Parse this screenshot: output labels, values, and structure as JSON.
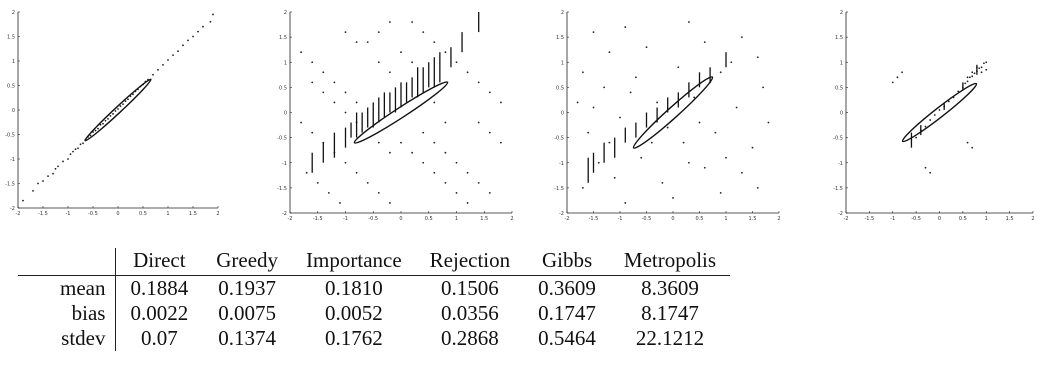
{
  "chart_data": [
    {
      "type": "scatter",
      "title": "",
      "xlim": [
        -2,
        2
      ],
      "ylim": [
        -2,
        2
      ],
      "xticks": [
        "-2",
        "-1.5",
        "-1",
        "-0.5",
        "0",
        "0.5",
        "1",
        "1.5",
        "2"
      ],
      "yticks": [
        "2",
        "1.5",
        "1",
        "0.5",
        "0",
        "-0.5",
        "-1",
        "-1.5",
        "-2"
      ],
      "points": [
        [
          -1.9,
          -1.85
        ],
        [
          -1.7,
          -1.65
        ],
        [
          -1.6,
          -1.5
        ],
        [
          -1.5,
          -1.45
        ],
        [
          -1.4,
          -1.35
        ],
        [
          -1.3,
          -1.3
        ],
        [
          -1.25,
          -1.2
        ],
        [
          -1.2,
          -1.15
        ],
        [
          -1.1,
          -1.05
        ],
        [
          -1.0,
          -1.0
        ],
        [
          -0.95,
          -0.9
        ],
        [
          -0.9,
          -0.85
        ],
        [
          -0.85,
          -0.8
        ],
        [
          -0.8,
          -0.78
        ],
        [
          -0.75,
          -0.7
        ],
        [
          -0.7,
          -0.68
        ],
        [
          -0.65,
          -0.6
        ],
        [
          -0.6,
          -0.55
        ],
        [
          -0.55,
          -0.52
        ],
        [
          -0.5,
          -0.45
        ],
        [
          -0.45,
          -0.42
        ],
        [
          -0.4,
          -0.38
        ],
        [
          -0.35,
          -0.3
        ],
        [
          -0.3,
          -0.28
        ],
        [
          -0.25,
          -0.22
        ],
        [
          -0.2,
          -0.18
        ],
        [
          -0.15,
          -0.12
        ],
        [
          -0.1,
          -0.08
        ],
        [
          -0.05,
          -0.02
        ],
        [
          0.0,
          0.02
        ],
        [
          0.05,
          0.08
        ],
        [
          0.1,
          0.12
        ],
        [
          0.15,
          0.18
        ],
        [
          0.2,
          0.22
        ],
        [
          0.25,
          0.28
        ],
        [
          0.3,
          0.32
        ],
        [
          0.35,
          0.38
        ],
        [
          0.4,
          0.42
        ],
        [
          0.45,
          0.48
        ],
        [
          0.5,
          0.52
        ],
        [
          0.55,
          0.58
        ],
        [
          0.6,
          0.62
        ],
        [
          0.7,
          0.72
        ],
        [
          0.8,
          0.82
        ],
        [
          0.9,
          0.92
        ],
        [
          1.0,
          1.02
        ],
        [
          1.1,
          1.12
        ],
        [
          1.2,
          1.2
        ],
        [
          1.3,
          1.32
        ],
        [
          1.4,
          1.42
        ],
        [
          1.5,
          1.5
        ],
        [
          1.6,
          1.6
        ],
        [
          1.7,
          1.7
        ],
        [
          1.85,
          1.8
        ],
        [
          1.9,
          1.95
        ]
      ],
      "ellipse": {
        "cx": 0,
        "cy": 0,
        "rx": 0.9,
        "ry": 0.06,
        "angle_deg": 43
      },
      "error_bars": []
    },
    {
      "type": "scatter",
      "title": "",
      "xlim": [
        -2,
        2
      ],
      "ylim": [
        -2,
        2
      ],
      "xticks": [
        "-2",
        "-1.5",
        "-1",
        "-0.5",
        "0",
        "0.5",
        "1",
        "1.5",
        "2"
      ],
      "yticks": [
        "2",
        "1.5",
        "1",
        "0.5",
        "0",
        "-0.5",
        "-1",
        "-1.5",
        "-2"
      ],
      "points": [
        [
          -1.8,
          1.2
        ],
        [
          -1.6,
          1.0
        ],
        [
          -1.4,
          0.8
        ],
        [
          -1.2,
          0.6
        ],
        [
          -1.0,
          0.4
        ],
        [
          -0.8,
          0.2
        ],
        [
          -1.6,
          0.6
        ],
        [
          -1.4,
          0.4
        ],
        [
          -1.2,
          0.2
        ],
        [
          -1.0,
          0.0
        ],
        [
          -0.8,
          -0.2
        ],
        [
          -1.8,
          -0.2
        ],
        [
          -1.6,
          -0.4
        ],
        [
          -1.4,
          -0.6
        ],
        [
          -1.2,
          -0.8
        ],
        [
          -1.0,
          -1.0
        ],
        [
          -0.8,
          -1.2
        ],
        [
          -0.6,
          -1.4
        ],
        [
          -0.4,
          -1.6
        ],
        [
          -0.2,
          -1.8
        ],
        [
          -1.7,
          -1.2
        ],
        [
          -1.5,
          -1.4
        ],
        [
          -1.3,
          -1.6
        ],
        [
          -1.1,
          -1.8
        ],
        [
          0.2,
          1.8
        ],
        [
          0.4,
          1.6
        ],
        [
          0.6,
          1.4
        ],
        [
          0.8,
          1.2
        ],
        [
          1.0,
          1.0
        ],
        [
          1.2,
          0.8
        ],
        [
          1.4,
          0.6
        ],
        [
          1.6,
          0.4
        ],
        [
          1.8,
          0.2
        ],
        [
          0.0,
          -0.6
        ],
        [
          0.2,
          -0.8
        ],
        [
          0.4,
          -1.0
        ],
        [
          0.6,
          -1.2
        ],
        [
          0.8,
          -1.4
        ],
        [
          1.0,
          -1.6
        ],
        [
          1.2,
          -1.8
        ],
        [
          0.4,
          -0.4
        ],
        [
          0.6,
          -0.6
        ],
        [
          0.8,
          -0.8
        ],
        [
          1.0,
          -1.0
        ],
        [
          1.2,
          -1.2
        ],
        [
          1.4,
          -1.4
        ],
        [
          1.6,
          -1.6
        ],
        [
          -0.6,
          1.4
        ],
        [
          -0.4,
          1.6
        ],
        [
          -0.2,
          1.8
        ],
        [
          -0.8,
          1.4
        ],
        [
          -1.0,
          1.6
        ],
        [
          0.0,
          1.2
        ],
        [
          0.2,
          1.0
        ],
        [
          -0.2,
          0.8
        ],
        [
          -0.4,
          1.0
        ],
        [
          1.4,
          -0.2
        ],
        [
          1.6,
          -0.4
        ],
        [
          1.8,
          -0.6
        ],
        [
          0.6,
          0.2
        ],
        [
          0.8,
          -0.2
        ],
        [
          -0.2,
          -0.8
        ],
        [
          -0.4,
          -0.6
        ]
      ],
      "ellipse": {
        "cx": 0,
        "cy": 0,
        "rx": 1.0,
        "ry": 0.09,
        "angle_deg": 33
      },
      "error_bars": [
        [
          -1.6,
          -1.2,
          -0.8
        ],
        [
          -1.4,
          -1.0,
          -0.6
        ],
        [
          -1.2,
          -0.9,
          -0.4
        ],
        [
          -1.0,
          -0.7,
          -0.3
        ],
        [
          -0.9,
          -0.5,
          -0.2
        ],
        [
          -0.8,
          -0.5,
          0.0
        ],
        [
          -0.7,
          -0.4,
          0.0
        ],
        [
          -0.6,
          -0.3,
          0.1
        ],
        [
          -0.5,
          -0.3,
          0.2
        ],
        [
          -0.4,
          -0.2,
          0.3
        ],
        [
          -0.3,
          -0.1,
          0.4
        ],
        [
          -0.2,
          0.0,
          0.4
        ],
        [
          -0.1,
          0.0,
          0.5
        ],
        [
          0.0,
          0.1,
          0.6
        ],
        [
          0.1,
          0.2,
          0.6
        ],
        [
          0.2,
          0.3,
          0.7
        ],
        [
          0.3,
          0.3,
          0.9
        ],
        [
          0.4,
          0.4,
          0.9
        ],
        [
          0.5,
          0.5,
          1.0
        ],
        [
          0.6,
          0.5,
          1.1
        ],
        [
          0.7,
          0.6,
          1.2
        ],
        [
          0.9,
          0.9,
          1.3
        ],
        [
          1.1,
          1.2,
          1.6
        ],
        [
          1.4,
          1.6,
          2.0
        ]
      ]
    },
    {
      "type": "scatter",
      "title": "",
      "xlim": [
        -2,
        2
      ],
      "ylim": [
        -2,
        2
      ],
      "xticks": [
        "-2",
        "-1.5",
        "-1",
        "-0.5",
        "0",
        "0.5",
        "1",
        "1.5",
        "2"
      ],
      "yticks": [
        "2",
        "1.5",
        "1",
        "0.5",
        "0",
        "-0.5",
        "-1",
        "-1.5",
        "-2"
      ],
      "points": [
        [
          -1.5,
          1.6
        ],
        [
          -0.9,
          1.7
        ],
        [
          0.3,
          1.8
        ],
        [
          1.3,
          1.5
        ],
        [
          -1.7,
          0.8
        ],
        [
          -1.2,
          1.2
        ],
        [
          -0.5,
          1.3
        ],
        [
          0.6,
          1.4
        ],
        [
          1.6,
          1.1
        ],
        [
          -1.8,
          0.2
        ],
        [
          -1.3,
          0.5
        ],
        [
          -0.7,
          0.7
        ],
        [
          0.1,
          0.9
        ],
        [
          0.9,
          0.8
        ],
        [
          1.7,
          0.5
        ],
        [
          -1.6,
          -0.4
        ],
        [
          -1.0,
          -0.1
        ],
        [
          -0.3,
          0.2
        ],
        [
          0.4,
          0.3
        ],
        [
          1.2,
          0.1
        ],
        [
          1.8,
          -0.2
        ],
        [
          -1.4,
          -1.0
        ],
        [
          -0.6,
          -0.9
        ],
        [
          0.2,
          -0.6
        ],
        [
          0.8,
          -0.4
        ],
        [
          1.5,
          -0.7
        ],
        [
          -1.7,
          -1.5
        ],
        [
          -1.1,
          -1.3
        ],
        [
          -0.2,
          -1.4
        ],
        [
          0.6,
          -1.1
        ],
        [
          1.3,
          -1.2
        ],
        [
          -0.9,
          -1.8
        ],
        [
          0.0,
          -1.7
        ],
        [
          0.9,
          -1.6
        ],
        [
          1.6,
          -1.5
        ],
        [
          -0.4,
          -0.6
        ],
        [
          0.5,
          -0.2
        ],
        [
          -0.8,
          0.4
        ],
        [
          0.3,
          -1.0
        ],
        [
          1.0,
          -0.9
        ],
        [
          -1.2,
          -0.6
        ],
        [
          0.7,
          0.6
        ],
        [
          -0.1,
          -0.3
        ],
        [
          1.1,
          1.0
        ],
        [
          -1.5,
          0.1
        ]
      ],
      "ellipse": {
        "cx": 0,
        "cy": 0,
        "rx": 1.0,
        "ry": 0.1,
        "angle_deg": 42
      },
      "error_bars": [
        [
          -1.6,
          -1.4,
          -0.9
        ],
        [
          -1.5,
          -1.2,
          -0.8
        ],
        [
          -1.3,
          -1.0,
          -0.6
        ],
        [
          -1.1,
          -0.9,
          -0.5
        ],
        [
          -0.9,
          -0.6,
          -0.3
        ],
        [
          -0.7,
          -0.5,
          -0.2
        ],
        [
          -0.5,
          -0.3,
          0.0
        ],
        [
          -0.3,
          -0.2,
          0.1
        ],
        [
          -0.1,
          0.0,
          0.3
        ],
        [
          0.1,
          0.1,
          0.4
        ],
        [
          0.3,
          0.3,
          0.6
        ],
        [
          0.5,
          0.5,
          0.8
        ],
        [
          0.7,
          0.6,
          0.9
        ],
        [
          1.0,
          0.9,
          1.2
        ]
      ]
    },
    {
      "type": "scatter",
      "title": "",
      "xlim": [
        -2,
        2
      ],
      "ylim": [
        -2,
        2
      ],
      "xticks": [
        "-2",
        "-1.5",
        "-1",
        "-0.5",
        "0",
        "0.5",
        "1",
        "1.5",
        "2"
      ],
      "yticks": [
        "2",
        "1.5",
        "1",
        "0.5",
        "0",
        "-0.5",
        "-1",
        "-1.5",
        "-2"
      ],
      "points": [
        [
          -0.5,
          -0.5
        ],
        [
          -0.4,
          -0.35
        ],
        [
          -0.3,
          -0.28
        ],
        [
          -0.2,
          -0.15
        ],
        [
          -0.1,
          -0.05
        ],
        [
          0.0,
          0.05
        ],
        [
          0.1,
          0.12
        ],
        [
          0.2,
          0.22
        ],
        [
          0.3,
          0.3
        ],
        [
          0.4,
          0.42
        ],
        [
          0.5,
          0.5
        ],
        [
          0.55,
          0.58
        ],
        [
          0.6,
          0.62
        ],
        [
          0.65,
          0.7
        ],
        [
          0.7,
          0.72
        ],
        [
          0.75,
          0.78
        ],
        [
          0.8,
          0.82
        ],
        [
          0.85,
          0.88
        ],
        [
          0.9,
          0.9
        ],
        [
          0.95,
          0.98
        ],
        [
          1.0,
          1.0
        ],
        [
          0.8,
          0.9
        ],
        [
          0.9,
          0.8
        ],
        [
          0.7,
          0.8
        ],
        [
          1.0,
          0.85
        ],
        [
          0.6,
          0.7
        ],
        [
          -1.0,
          0.6
        ],
        [
          -0.9,
          0.7
        ],
        [
          -0.8,
          0.8
        ],
        [
          -0.3,
          -1.1
        ],
        [
          -0.2,
          -1.2
        ],
        [
          0.6,
          -0.6
        ],
        [
          0.7,
          -0.7
        ]
      ],
      "ellipse": {
        "cx": 0,
        "cy": 0,
        "rx": 1.0,
        "ry": 0.1,
        "angle_deg": 38
      },
      "error_bars": [
        [
          -0.6,
          -0.7,
          -0.4
        ],
        [
          -0.4,
          -0.45,
          -0.25
        ],
        [
          0.1,
          0.05,
          0.2
        ],
        [
          0.5,
          0.45,
          0.6
        ],
        [
          0.8,
          0.75,
          0.95
        ]
      ]
    }
  ],
  "table": {
    "columns": [
      "Direct",
      "Greedy",
      "Importance",
      "Rejection",
      "Gibbs",
      "Metropolis"
    ],
    "rows": [
      {
        "label": "mean",
        "values": [
          "0.1884",
          "0.1937",
          "0.1810",
          "0.1506",
          "0.3609",
          "8.3609"
        ]
      },
      {
        "label": "bias",
        "values": [
          "0.0022",
          "0.0075",
          "0.0052",
          "0.0356",
          "0.1747",
          "8.1747"
        ]
      },
      {
        "label": "stdev",
        "values": [
          "0.07",
          "0.1374",
          "0.1762",
          "0.2868",
          "0.5464",
          "22.1212"
        ]
      }
    ]
  }
}
